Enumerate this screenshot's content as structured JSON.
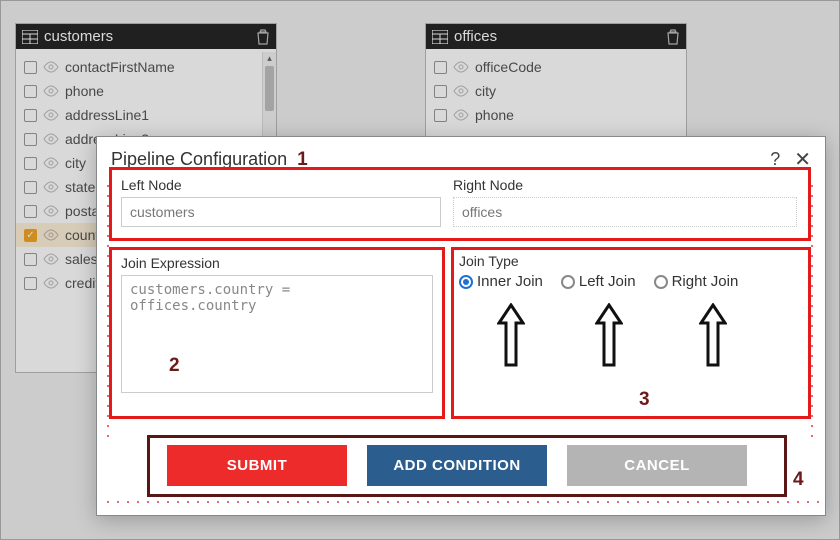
{
  "tables": {
    "left": {
      "name": "customers",
      "fields": [
        {
          "label": "contactFirstName",
          "checked": false
        },
        {
          "label": "phone",
          "checked": false
        },
        {
          "label": "addressLine1",
          "checked": false
        },
        {
          "label": "addressLine2",
          "checked": false
        },
        {
          "label": "city",
          "checked": false
        },
        {
          "label": "state",
          "checked": false
        },
        {
          "label": "postalCode",
          "checked": false
        },
        {
          "label": "country",
          "checked": true
        },
        {
          "label": "salesRepEmployeeNumber",
          "checked": false
        },
        {
          "label": "creditLimit",
          "checked": false
        }
      ]
    },
    "right": {
      "name": "offices",
      "fields": [
        {
          "label": "officeCode",
          "checked": false
        },
        {
          "label": "city",
          "checked": false
        },
        {
          "label": "phone",
          "checked": false
        }
      ]
    }
  },
  "modal": {
    "title": "Pipeline Configuration",
    "leftNodeLabel": "Left Node",
    "leftNodeValue": "customers",
    "rightNodeLabel": "Right Node",
    "rightNodeValue": "offices",
    "joinExprLabel": "Join Expression",
    "joinExprValue": "customers.country = offices.country",
    "joinTypeLabel": "Join Type",
    "joinTypes": {
      "inner": "Inner Join",
      "left": "Left Join",
      "right": "Right Join",
      "selected": "inner"
    },
    "buttons": {
      "submit": "SUBMIT",
      "addCondition": "ADD CONDITION",
      "cancel": "CANCEL"
    }
  },
  "annotations": {
    "a1": "1",
    "a2": "2",
    "a3": "3",
    "a4": "4"
  },
  "colors": {
    "annot_red": "#e41b1b",
    "annot_dark": "#5a1515",
    "btn_red": "#ed2b2b",
    "btn_blue": "#2b5e8e",
    "btn_grey": "#b4b4b4",
    "radio_sel": "#1e6fd6",
    "check_on": "#f5a623"
  }
}
